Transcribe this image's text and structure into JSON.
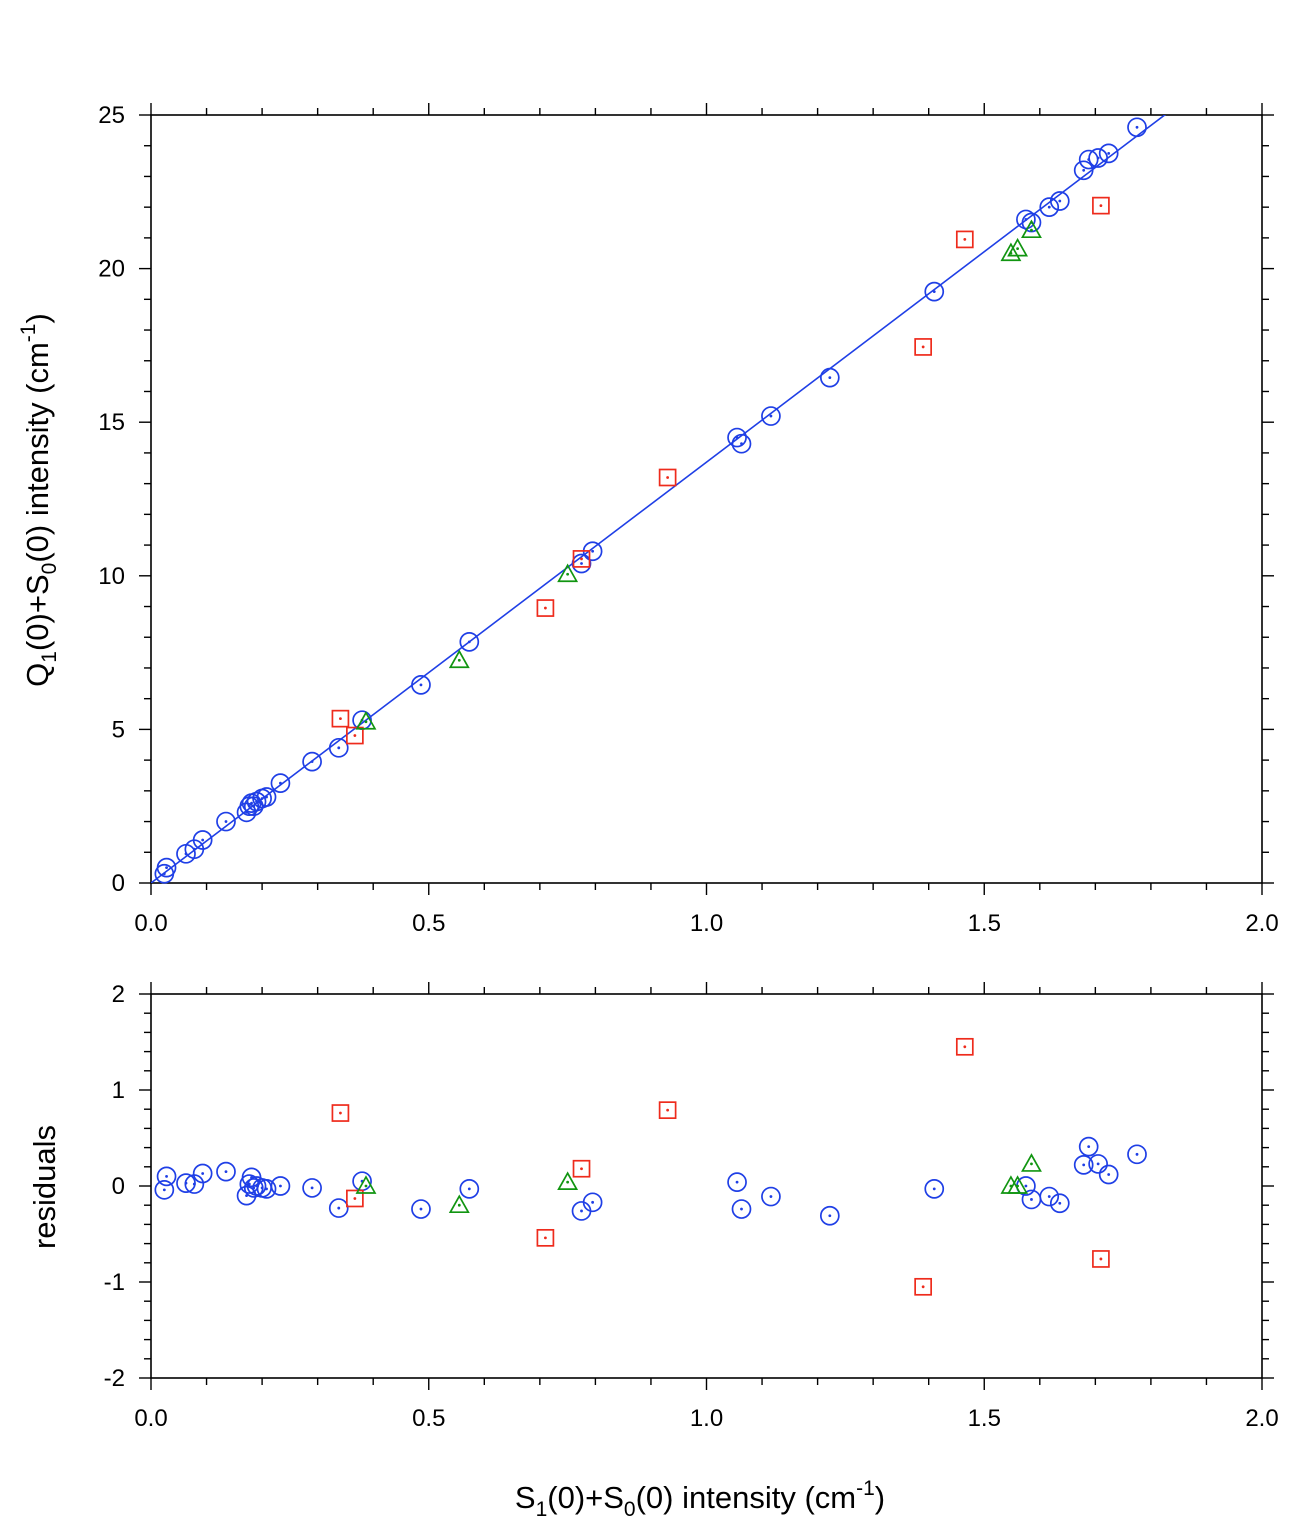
{
  "chart_data": [
    {
      "type": "scatter",
      "panel": "top",
      "xlabel": "S1(0)+S0(0) intensity (cm-1)",
      "ylabel": "Q1(0)+S0(0) intensity (cm-1)",
      "xlim": [
        0,
        2.0
      ],
      "ylim": [
        0,
        25
      ],
      "x_ticks": [
        "0.0",
        "0.5",
        "1.0",
        "1.5",
        "2.0"
      ],
      "y_ticks": [
        "0",
        "5",
        "10",
        "15",
        "20",
        "25"
      ],
      "fit_line": {
        "slope": 13.7,
        "intercept": 0.0,
        "color": "#1f3fe6"
      },
      "series": [
        {
          "name": "circles",
          "marker": "circle",
          "color": "#1f3fe6",
          "points": [
            [
              0.024,
              0.3
            ],
            [
              0.028,
              0.5
            ],
            [
              0.063,
              0.95
            ],
            [
              0.078,
              1.1
            ],
            [
              0.093,
              1.4
            ],
            [
              0.135,
              2.0
            ],
            [
              0.172,
              2.3
            ],
            [
              0.177,
              2.5
            ],
            [
              0.181,
              2.6
            ],
            [
              0.185,
              2.5
            ],
            [
              0.19,
              2.65
            ],
            [
              0.2,
              2.75
            ],
            [
              0.208,
              2.8
            ],
            [
              0.233,
              3.25
            ],
            [
              0.29,
              3.95
            ],
            [
              0.338,
              4.4
            ],
            [
              0.38,
              5.3
            ],
            [
              0.486,
              6.45
            ],
            [
              0.573,
              7.85
            ],
            [
              0.775,
              10.4
            ],
            [
              0.795,
              10.8
            ],
            [
              1.055,
              14.5
            ],
            [
              1.063,
              14.3
            ],
            [
              1.116,
              15.2
            ],
            [
              1.222,
              16.45
            ],
            [
              1.41,
              19.25
            ],
            [
              1.575,
              21.6
            ],
            [
              1.585,
              21.5
            ],
            [
              1.617,
              22.0
            ],
            [
              1.636,
              22.2
            ],
            [
              1.679,
              23.2
            ],
            [
              1.688,
              23.55
            ],
            [
              1.705,
              23.6
            ],
            [
              1.724,
              23.75
            ],
            [
              1.775,
              24.6
            ]
          ]
        },
        {
          "name": "squares",
          "marker": "square",
          "color": "#ee2b1c",
          "points": [
            [
              0.341,
              5.35
            ],
            [
              0.367,
              4.8
            ],
            [
              0.71,
              8.95
            ],
            [
              0.775,
              10.55
            ],
            [
              0.93,
              13.2
            ],
            [
              1.39,
              17.45
            ],
            [
              1.465,
              20.95
            ],
            [
              1.71,
              22.05
            ]
          ]
        },
        {
          "name": "triangles",
          "marker": "triangle",
          "color": "#119511",
          "points": [
            [
              0.387,
              5.25
            ],
            [
              0.555,
              7.25
            ],
            [
              0.75,
              10.05
            ],
            [
              1.548,
              20.5
            ],
            [
              1.56,
              20.65
            ],
            [
              1.585,
              21.25
            ]
          ]
        }
      ]
    },
    {
      "type": "scatter",
      "panel": "bottom",
      "xlabel": "S1(0)+S0(0) intensity (cm-1)",
      "ylabel": "residuals",
      "xlim": [
        0,
        2.0
      ],
      "ylim": [
        -2,
        2
      ],
      "x_ticks": [
        "0.0",
        "0.5",
        "1.0",
        "1.5",
        "2.0"
      ],
      "y_ticks": [
        "-2",
        "-1",
        "0",
        "1",
        "2"
      ],
      "series": [
        {
          "name": "circles",
          "marker": "circle",
          "color": "#1f3fe6",
          "points": [
            [
              0.024,
              -0.04
            ],
            [
              0.028,
              0.1
            ],
            [
              0.063,
              0.03
            ],
            [
              0.078,
              0.02
            ],
            [
              0.093,
              0.13
            ],
            [
              0.135,
              0.15
            ],
            [
              0.172,
              -0.1
            ],
            [
              0.177,
              0.02
            ],
            [
              0.181,
              0.09
            ],
            [
              0.185,
              -0.02
            ],
            [
              0.19,
              0.0
            ],
            [
              0.2,
              -0.02
            ],
            [
              0.208,
              -0.03
            ],
            [
              0.233,
              0.0
            ],
            [
              0.29,
              -0.02
            ],
            [
              0.338,
              -0.23
            ],
            [
              0.38,
              0.05
            ],
            [
              0.486,
              -0.24
            ],
            [
              0.573,
              -0.03
            ],
            [
              0.775,
              -0.26
            ],
            [
              0.795,
              -0.17
            ],
            [
              1.055,
              0.04
            ],
            [
              1.063,
              -0.24
            ],
            [
              1.116,
              -0.11
            ],
            [
              1.222,
              -0.31
            ],
            [
              1.41,
              -0.03
            ],
            [
              1.575,
              0.0
            ],
            [
              1.585,
              -0.14
            ],
            [
              1.617,
              -0.11
            ],
            [
              1.636,
              -0.18
            ],
            [
              1.679,
              0.22
            ],
            [
              1.688,
              0.41
            ],
            [
              1.705,
              0.23
            ],
            [
              1.724,
              0.12
            ],
            [
              1.775,
              0.33
            ]
          ]
        },
        {
          "name": "squares",
          "marker": "square",
          "color": "#ee2b1c",
          "points": [
            [
              0.341,
              0.76
            ],
            [
              0.367,
              -0.13
            ],
            [
              0.71,
              -0.54
            ],
            [
              0.775,
              0.18
            ],
            [
              0.93,
              0.79
            ],
            [
              1.39,
              -1.05
            ],
            [
              1.465,
              1.45
            ],
            [
              1.71,
              -0.76
            ]
          ]
        },
        {
          "name": "triangles",
          "marker": "triangle",
          "color": "#119511",
          "points": [
            [
              0.387,
              0.0
            ],
            [
              0.555,
              -0.2
            ],
            [
              0.75,
              0.04
            ],
            [
              1.548,
              0.0
            ],
            [
              1.56,
              0.0
            ],
            [
              1.585,
              0.23
            ]
          ]
        }
      ]
    }
  ],
  "labels": {
    "top_ylabel_main": "Q",
    "top_ylabel_sub1": "1",
    "top_ylabel_mid": "(0)+S",
    "top_ylabel_sub2": "0",
    "top_ylabel_tail": "(0) intensity (cm",
    "top_ylabel_sup": "-1",
    "top_ylabel_end": ")",
    "bottom_ylabel": "residuals",
    "xlabel_main": "S",
    "xlabel_sub1": "1",
    "xlabel_mid": "(0)+S",
    "xlabel_sub2": "0",
    "xlabel_tail": "(0) intensity (cm",
    "xlabel_sup": "-1",
    "xlabel_end": ")"
  }
}
